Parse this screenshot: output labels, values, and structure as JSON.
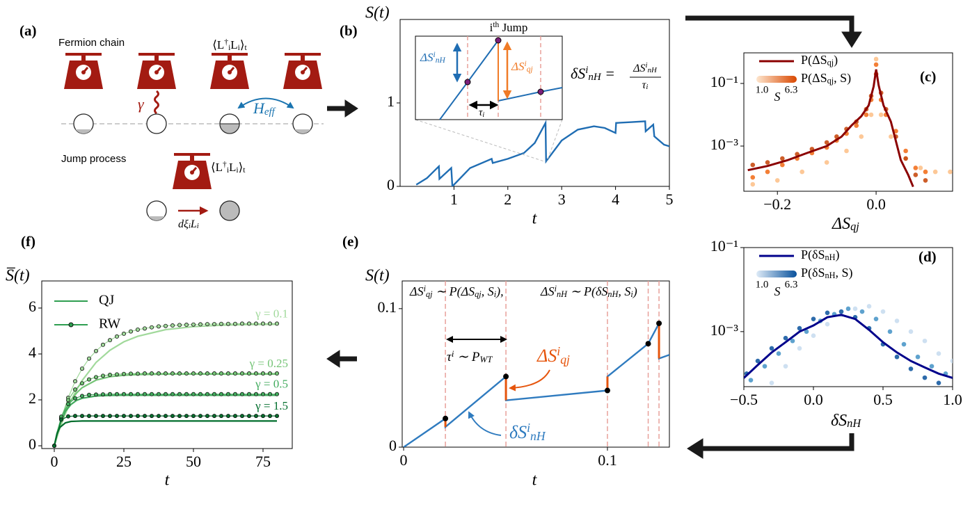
{
  "diagram": {
    "panel_label": "(a)",
    "chain_title": "Fermion chain",
    "monitor_label": [
      "⟨L",
      {
        "sup": "†"
      },
      {
        "sub": "i"
      },
      "L",
      {
        "sub": "i"
      },
      "⟩",
      {
        "sub": "t"
      }
    ],
    "rate_label": "γ",
    "hamiltonian_label": [
      "H",
      {
        "sub": "eff"
      }
    ],
    "jump_title": "Jump process",
    "jump_monitor_label": [
      "⟨L",
      {
        "sup": "†"
      },
      {
        "sub": "i"
      },
      "L",
      {
        "sub": "i"
      },
      "⟩",
      {
        "sub": "t"
      }
    ],
    "jump_label": [
      "dξ",
      {
        "sub": "i"
      },
      "L",
      {
        "sub": "i"
      }
    ]
  },
  "chart_data": [
    {
      "type": "line",
      "panel_label": "(b)",
      "y_label": "S(t)",
      "x_label": "t",
      "xlim": [
        0,
        5
      ],
      "xticks": [
        1,
        2,
        3,
        4,
        5
      ],
      "ylim": [
        0,
        2
      ],
      "yticks": [
        0,
        1
      ],
      "series": [
        {
          "color": "#1f6db3",
          "x": [
            0.3,
            0.5,
            0.72,
            0.73,
            0.95,
            0.97,
            1.3,
            1.7,
            1.72,
            2.0,
            2.3,
            2.5,
            2.7,
            2.71,
            3.0,
            3.3,
            3.6,
            3.8,
            4.0,
            4.01,
            4.3,
            4.55,
            4.56,
            4.7,
            4.72,
            4.9,
            5.0
          ],
          "values": [
            0.02,
            0.1,
            0.24,
            0.09,
            0.22,
            0.0,
            0.22,
            0.33,
            0.28,
            0.33,
            0.4,
            0.52,
            0.76,
            0.3,
            0.55,
            0.68,
            0.72,
            0.7,
            0.64,
            0.76,
            0.77,
            0.78,
            0.66,
            0.74,
            0.6,
            0.5,
            0.48
          ]
        }
      ],
      "inset": {
        "title": [
          "i",
          {
            "sup": "th"
          },
          " Jump"
        ],
        "nh_label": [
          "ΔS",
          {
            "sup": "i"
          },
          {
            "sub": "nH"
          }
        ],
        "qj_label": [
          "ΔS",
          {
            "sup": "i"
          },
          {
            "sub": "qj"
          }
        ],
        "wait_label": [
          "τ",
          {
            "sub": "i"
          }
        ]
      },
      "annotation": {
        "lhs": [
          "δS",
          {
            "sup": "i"
          },
          {
            "sub": "nH"
          },
          " ="
        ],
        "numerator": [
          "ΔS",
          {
            "sup": "i"
          },
          {
            "sub": "nH"
          }
        ],
        "denominator": [
          "τ",
          {
            "sub": "i"
          }
        ]
      }
    },
    {
      "type": "scatter",
      "panel_label": "(c)",
      "x_label": [
        "ΔS",
        {
          "sub": "qj"
        }
      ],
      "xlim": [
        -0.268,
        0.155
      ],
      "xticks": [
        {
          "value": -0.2,
          "label": "−0.2"
        },
        {
          "value": 0,
          "label": "0.0"
        }
      ],
      "y_scale": "log",
      "ylim": [
        3.6e-05,
        0.95
      ],
      "yticks": [
        {
          "value": 0.1,
          "label": "10⁻¹"
        },
        {
          "value": 0.001,
          "label": "10⁻³"
        }
      ],
      "legend": "upper left",
      "line": {
        "name": [
          "P(ΔS",
          {
            "sub": "qj"
          },
          ")"
        ],
        "color": "#8b0000",
        "x": [
          -0.26,
          -0.22,
          -0.18,
          -0.14,
          -0.1,
          -0.07,
          -0.05,
          -0.03,
          -0.015,
          -0.005,
          0,
          0.005,
          0.015,
          0.03,
          0.05,
          0.065,
          0.075
        ],
        "values": [
          0.00017,
          0.00023,
          0.00035,
          0.0006,
          0.001,
          0.002,
          0.0045,
          0.009,
          0.02,
          0.08,
          0.28,
          0.09,
          0.02,
          0.006,
          0.00036,
          0.00012,
          5e-05
        ]
      },
      "scatter_name": [
        "P(ΔS",
        {
          "sub": "qj"
        },
        ", S)"
      ],
      "colorbar": {
        "label": "S",
        "ticks": [
          {
            "value": 1,
            "label": "1.0"
          },
          6.3
        ],
        "colors": [
          "#fee6ce",
          "#d94801"
        ]
      },
      "series": [
        {
          "color": "#fdbe85",
          "x": [
            -0.25,
            -0.2,
            -0.15,
            -0.1,
            -0.06,
            -0.03,
            -0.01,
            0,
            0.01,
            0.03,
            0.06,
            0.09,
            0.12,
            0.15
          ],
          "values": [
            6e-05,
            8e-05,
            0.00015,
            0.0003,
            0.0007,
            0.002,
            0.01,
            0.6,
            0.01,
            0.002,
            0.0004,
            0.0002,
            0.00015,
            0.00015
          ]
        },
        {
          "color": "#f16913",
          "x": [
            -0.25,
            -0.22,
            -0.19,
            -0.16,
            -0.13,
            -0.1,
            -0.08,
            -0.06,
            -0.04,
            -0.02,
            -0.01,
            0,
            0.01,
            0.02,
            0.04,
            0.06,
            0.08,
            0.1
          ],
          "values": [
            0.0001,
            0.00015,
            0.00025,
            0.0004,
            0.0006,
            0.0009,
            0.0015,
            0.0025,
            0.0045,
            0.01,
            0.03,
            0.4,
            0.03,
            0.01,
            0.003,
            0.0007,
            0.0002,
            0.00015
          ]
        },
        {
          "color": "#c44103",
          "x": [
            -0.25,
            -0.22,
            -0.19,
            -0.16,
            -0.13,
            -0.1,
            -0.08,
            -0.06,
            -0.04,
            -0.02,
            -0.01,
            0,
            0.01,
            0.02,
            0.04,
            0.06,
            0.08,
            0.1
          ],
          "values": [
            0.00025,
            0.0003,
            0.0004,
            0.00055,
            0.0008,
            0.0013,
            0.002,
            0.0035,
            0.006,
            0.015,
            0.04,
            0.2,
            0.05,
            0.015,
            0.002,
            0.0004,
            0.00012,
            8e-05
          ]
        }
      ]
    },
    {
      "type": "scatter",
      "panel_label": "(d)",
      "x_label": [
        "δS",
        {
          "sub": "nH"
        }
      ],
      "xlim": [
        -0.5,
        1.0
      ],
      "xticks": [
        {
          "value": -0.5,
          "label": "−0.5"
        },
        {
          "value": 0,
          "label": "0.0"
        },
        0.5,
        {
          "value": 1,
          "label": "1.0"
        }
      ],
      "y_scale": "log",
      "ylim": [
        4.9e-05,
        0.1
      ],
      "yticks": [
        {
          "value": 0.1,
          "label": "10⁻¹"
        },
        {
          "value": 0.001,
          "label": "10⁻³"
        }
      ],
      "legend": "upper left",
      "line": {
        "name": [
          "P(δS",
          {
            "sub": "nH"
          },
          ")"
        ],
        "color": "#00008b",
        "x": [
          -0.5,
          -0.4,
          -0.3,
          -0.2,
          -0.1,
          0,
          0.1,
          0.2,
          0.3,
          0.4,
          0.5,
          0.6,
          0.7,
          0.8,
          0.9,
          1.0
        ],
        "values": [
          7.9e-05,
          0.00016,
          0.00032,
          0.00056,
          0.001,
          0.0014,
          0.0022,
          0.0025,
          0.002,
          0.0011,
          0.00056,
          0.00032,
          0.0002,
          0.00014,
          0.0001,
          7.9e-05
        ]
      },
      "scatter_name": [
        "P(δS",
        {
          "sub": "nH"
        },
        ", S)"
      ],
      "colorbar": {
        "label": "S",
        "ticks": [
          {
            "value": 1,
            "label": "1.0"
          },
          6.3
        ],
        "colors": [
          "#deebf7",
          "#08519c"
        ]
      },
      "series": [
        {
          "color": "#c6dbef",
          "x": [
            -0.3,
            -0.2,
            -0.1,
            0,
            0.1,
            0.2,
            0.3,
            0.4,
            0.5,
            0.6,
            0.7,
            0.8,
            0.9,
            1.0
          ],
          "values": [
            6e-05,
            0.00015,
            0.0004,
            0.0008,
            0.0015,
            0.0025,
            0.0035,
            0.004,
            0.003,
            0.0018,
            0.001,
            0.0006,
            0.0003,
            0.0002
          ]
        },
        {
          "color": "#4292c6",
          "x": [
            -0.45,
            -0.35,
            -0.25,
            -0.15,
            -0.05,
            0.05,
            0.15,
            0.25,
            0.35,
            0.45,
            0.55,
            0.65,
            0.75,
            0.85,
            0.95
          ],
          "values": [
            7e-05,
            0.00015,
            0.0003,
            0.0006,
            0.001,
            0.0018,
            0.0026,
            0.0035,
            0.003,
            0.002,
            0.001,
            0.0005,
            0.00025,
            0.00015,
            0.0001
          ]
        },
        {
          "color": "#08519c",
          "x": [
            -0.48,
            -0.4,
            -0.3,
            -0.2,
            -0.1,
            0,
            0.1,
            0.2,
            0.3,
            0.4,
            0.5,
            0.6,
            0.7,
            0.8,
            0.9
          ],
          "values": [
            0.0001,
            0.0002,
            0.0004,
            0.0007,
            0.0012,
            0.002,
            0.0028,
            0.003,
            0.0022,
            0.0012,
            0.0005,
            0.00025,
            0.00013,
            8e-05,
            6e-05
          ]
        }
      ]
    },
    {
      "type": "line",
      "panel_label": "(e)",
      "y_label": "S(t)",
      "x_label": "t",
      "xlim": [
        -0.0007,
        0.1304
      ],
      "xticks": [
        0,
        0.1
      ],
      "ylim": [
        0,
        0.12
      ],
      "yticks": [
        0,
        0.1
      ],
      "series": [
        {
          "color": "#2f7bbf",
          "x": [
            0,
            0.0205,
            0.0205,
            0.0502,
            0.0502,
            0.1,
            0.1,
            0.12,
            0.1253,
            0.1253,
            0.1304
          ],
          "values": [
            0,
            0.0207,
            0.0146,
            0.051,
            0.0338,
            0.0409,
            0.051,
            0.0747,
            0.0894,
            0.064,
            0.0667
          ]
        }
      ],
      "jumps": {
        "color": "#e6550d",
        "x": [
          0.0205,
          0.0502,
          0.1,
          0.1253
        ],
        "from": [
          0.0207,
          0.051,
          0.0409,
          0.0894
        ],
        "to": [
          0.0146,
          0.0338,
          0.051,
          0.064
        ]
      },
      "jump_points": {
        "color": "#000000",
        "x": [
          0.0205,
          0.0502,
          0.1,
          0.12,
          0.1253
        ],
        "values": [
          0.0207,
          0.051,
          0.0409,
          0.0747,
          0.0894
        ]
      },
      "annotations": {
        "dist_qj": [
          "ΔS",
          {
            "sup": "i"
          },
          {
            "sub": "qj"
          },
          " ∼ P(ΔS",
          {
            "sub": "qj"
          },
          ", S",
          {
            "sub": "i"
          },
          "),"
        ],
        "dist_nh": [
          "ΔS",
          {
            "sup": "i"
          },
          {
            "sub": "nH"
          },
          " ∼ P(δS",
          {
            "sub": "nH"
          },
          ", S",
          {
            "sub": "i"
          },
          ")"
        ],
        "wait": [
          "τ",
          {
            "sup": "i"
          },
          " ∼ P",
          {
            "sub": "WT"
          }
        ],
        "qj_label": [
          "ΔS",
          {
            "sup": "i"
          },
          {
            "sub": "qj"
          }
        ],
        "nh_label": [
          "δS",
          {
            "sup": "i"
          },
          {
            "sub": "nH"
          }
        ]
      }
    },
    {
      "type": "line",
      "panel_label": "(f)",
      "y_label": "S̅(t)",
      "x_label": "t",
      "xlim": [
        -4.5,
        85.5
      ],
      "xticks": [
        0,
        25,
        50,
        75
      ],
      "ylim": [
        -0.12,
        7.18
      ],
      "yticks": [
        0,
        2,
        4,
        6
      ],
      "legend": "upper left",
      "methods": [
        "QJ",
        "RW"
      ],
      "legend_color": "#2e9e50",
      "qj_x": [
        0,
        1,
        2,
        4,
        6,
        8,
        10,
        15,
        20,
        25,
        30,
        40,
        50,
        60,
        70,
        80
      ],
      "rw_x": [
        0,
        2.5,
        5,
        7.5,
        10,
        12.5,
        15,
        17.5,
        20,
        22.5,
        25,
        27.5,
        30,
        32.5,
        35,
        37.5,
        40,
        42.5,
        45,
        47.5,
        50,
        52.5,
        55,
        57.5,
        60,
        62.5,
        65,
        67.5,
        70,
        72.5,
        75,
        77.5,
        80
      ],
      "series": [
        {
          "name": "γ = 0.1",
          "color": "#a1d99b",
          "qj": [
            0,
            0.39,
            0.76,
            1.4,
            1.96,
            2.44,
            2.84,
            3.63,
            4.16,
            4.53,
            4.77,
            5.06,
            5.19,
            5.25,
            5.28,
            5.29
          ],
          "rw": [
            0,
            1.18,
            2.09,
            2.81,
            3.36,
            3.8,
            4.13,
            4.4,
            4.6,
            4.76,
            4.88,
            4.98,
            5.06,
            5.11,
            5.16,
            5.2,
            5.22,
            5.24,
            5.26,
            5.27,
            5.28,
            5.29,
            5.3,
            5.3,
            5.31,
            5.31,
            5.31,
            5.32,
            5.32,
            5.32,
            5.32,
            5.32,
            5.32
          ]
        },
        {
          "name": "γ = 0.25",
          "color": "#74c476",
          "qj": [
            0,
            0.48,
            0.88,
            1.52,
            1.97,
            2.3,
            2.53,
            2.86,
            3.01,
            3.07,
            3.1,
            3.12,
            3.12,
            3.12,
            3.12,
            3.12
          ],
          "rw": [
            0,
            1.24,
            1.99,
            2.45,
            2.72,
            2.89,
            2.99,
            3.05,
            3.09,
            3.11,
            3.13,
            3.14,
            3.14,
            3.15,
            3.15,
            3.15,
            3.15,
            3.15,
            3.15,
            3.15,
            3.15,
            3.15,
            3.15,
            3.15,
            3.15,
            3.15,
            3.15,
            3.15,
            3.15,
            3.15,
            3.15,
            3.15,
            3.15
          ]
        },
        {
          "name": "γ = 0.5",
          "color": "#41ab5d",
          "qj": [
            0,
            0.55,
            0.96,
            1.5,
            1.8,
            1.98,
            2.07,
            2.17,
            2.19,
            2.2,
            2.2,
            2.2,
            2.2,
            2.2,
            2.2,
            2.2
          ],
          "rw": [
            0,
            1.27,
            1.82,
            2.07,
            2.17,
            2.22,
            2.23,
            2.24,
            2.25,
            2.25,
            2.25,
            2.25,
            2.25,
            2.25,
            2.25,
            2.25,
            2.25,
            2.25,
            2.25,
            2.25,
            2.25,
            2.25,
            2.25,
            2.25,
            2.25,
            2.25,
            2.25,
            2.25,
            2.25,
            2.25,
            2.25,
            2.25,
            2.25
          ]
        },
        {
          "name": "γ = 1.5",
          "color": "#006d2c",
          "qj": [
            0,
            0.53,
            0.8,
            1.0,
            1.06,
            1.07,
            1.08,
            1.08,
            1.08,
            1.08,
            1.08,
            1.08,
            1.08,
            1.08,
            1.08,
            1.08
          ],
          "rw": [
            0,
            1.14,
            1.28,
            1.3,
            1.3,
            1.3,
            1.3,
            1.3,
            1.3,
            1.3,
            1.3,
            1.3,
            1.3,
            1.3,
            1.3,
            1.3,
            1.3,
            1.3,
            1.3,
            1.3,
            1.3,
            1.3,
            1.3,
            1.3,
            1.3,
            1.3,
            1.3,
            1.3,
            1.3,
            1.3,
            1.3,
            1.3,
            1.3
          ]
        }
      ]
    }
  ]
}
